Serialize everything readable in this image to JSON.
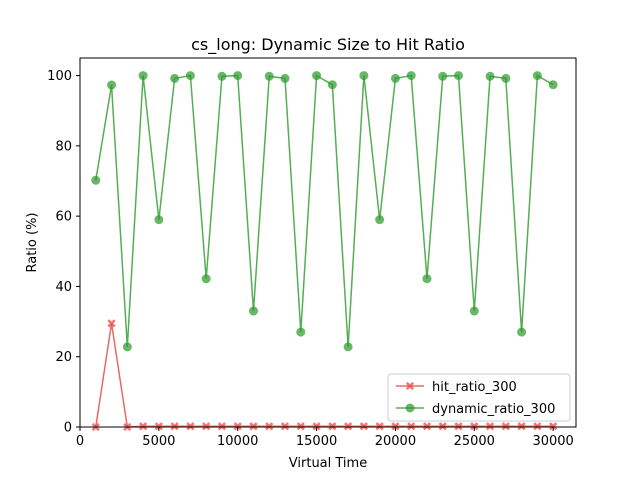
{
  "chart_data": {
    "type": "line",
    "title": "cs_long: Dynamic Size to Hit Ratio",
    "xlabel": "Virtual Time",
    "ylabel": "Ratio (%)",
    "xlim": [
      0,
      31450
    ],
    "ylim": [
      0,
      105
    ],
    "xticks": [
      0,
      5000,
      10000,
      15000,
      20000,
      25000,
      30000
    ],
    "yticks": [
      0,
      20,
      40,
      60,
      80,
      100
    ],
    "grid": false,
    "legend_position": "lower-right",
    "x": [
      1000,
      2000,
      3000,
      4000,
      5000,
      6000,
      7000,
      8000,
      9000,
      10000,
      11000,
      12000,
      13000,
      14000,
      15000,
      16000,
      17000,
      18000,
      19000,
      20000,
      21000,
      22000,
      23000,
      24000,
      25000,
      26000,
      27000,
      28000,
      29000,
      30000
    ],
    "series": [
      {
        "name": "hit_ratio_300",
        "color": "#e8413f",
        "marker": "x",
        "values": [
          0,
          29.5,
          0,
          0.2,
          0.2,
          0.2,
          0.2,
          0.2,
          0.2,
          0.2,
          0.2,
          0.2,
          0.2,
          0.2,
          0.2,
          0.2,
          0.2,
          0.2,
          0.2,
          0.2,
          0.2,
          0.2,
          0.2,
          0.2,
          0.2,
          0.2,
          0.2,
          0.2,
          0.2,
          0.2
        ]
      },
      {
        "name": "dynamic_ratio_300",
        "color": "#2a9a2a",
        "marker": "o",
        "values": [
          70.2,
          97.3,
          22.8,
          100,
          59,
          99.2,
          100,
          42.2,
          99.8,
          100,
          33,
          99.8,
          99.2,
          27,
          100,
          97.4,
          22.8,
          100,
          59,
          99.2,
          100,
          42.2,
          99.8,
          100,
          33,
          99.8,
          99.2,
          27,
          100,
          97.4
        ]
      }
    ]
  }
}
